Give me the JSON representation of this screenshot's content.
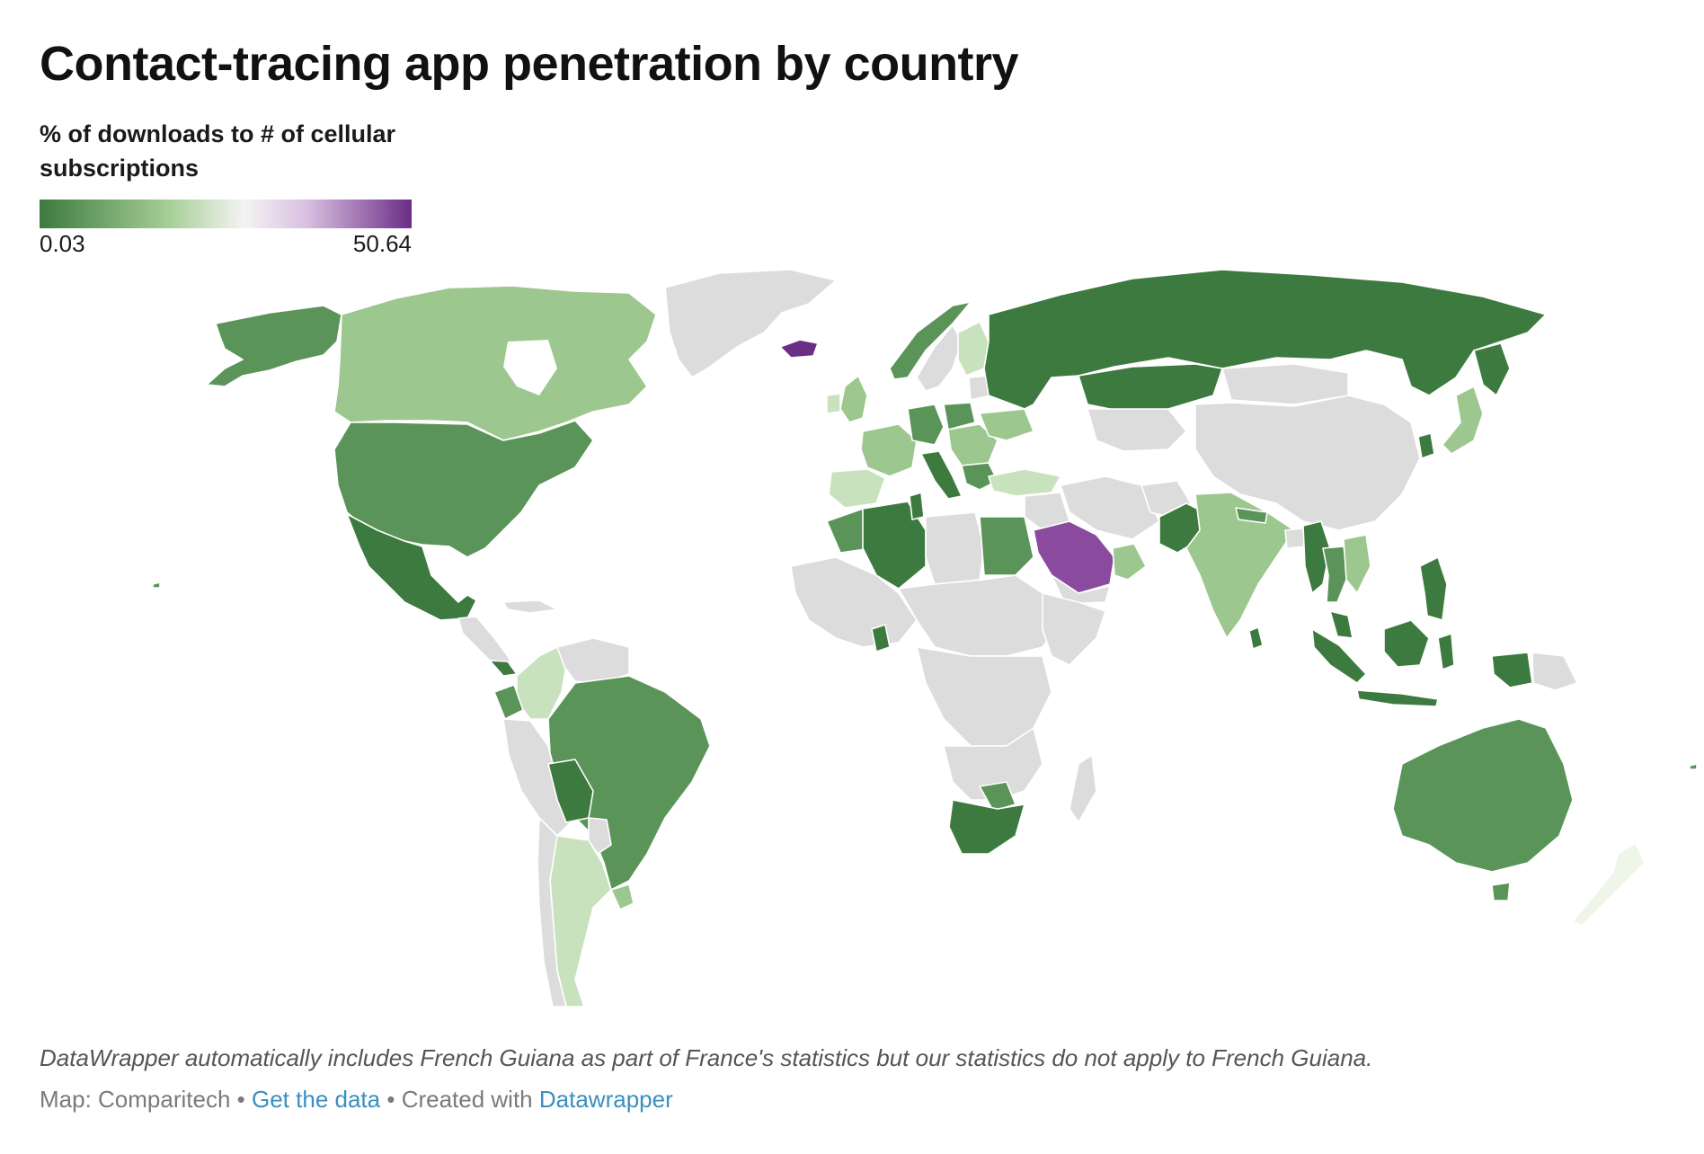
{
  "title": "Contact-tracing app penetration by country",
  "legend": {
    "title": "% of downloads to # of cellular subscriptions",
    "min_label": "0.03",
    "max_label": "50.64",
    "min": 0.03,
    "max": 50.64,
    "colors": [
      "#3d7a3f",
      "#a7cf98",
      "#f4f4f2",
      "#d8bfe0",
      "#6b2d86"
    ],
    "no_data_color": "#dcdcdc"
  },
  "note": "DataWrapper automatically includes French Guiana as part of France's statistics but our statistics do not apply to French Guiana.",
  "footer": {
    "source": "Map: Comparitech",
    "separator": "•",
    "get_data": "Get the data",
    "created_with": "Created with",
    "tool": "Datawrapper"
  }
}
